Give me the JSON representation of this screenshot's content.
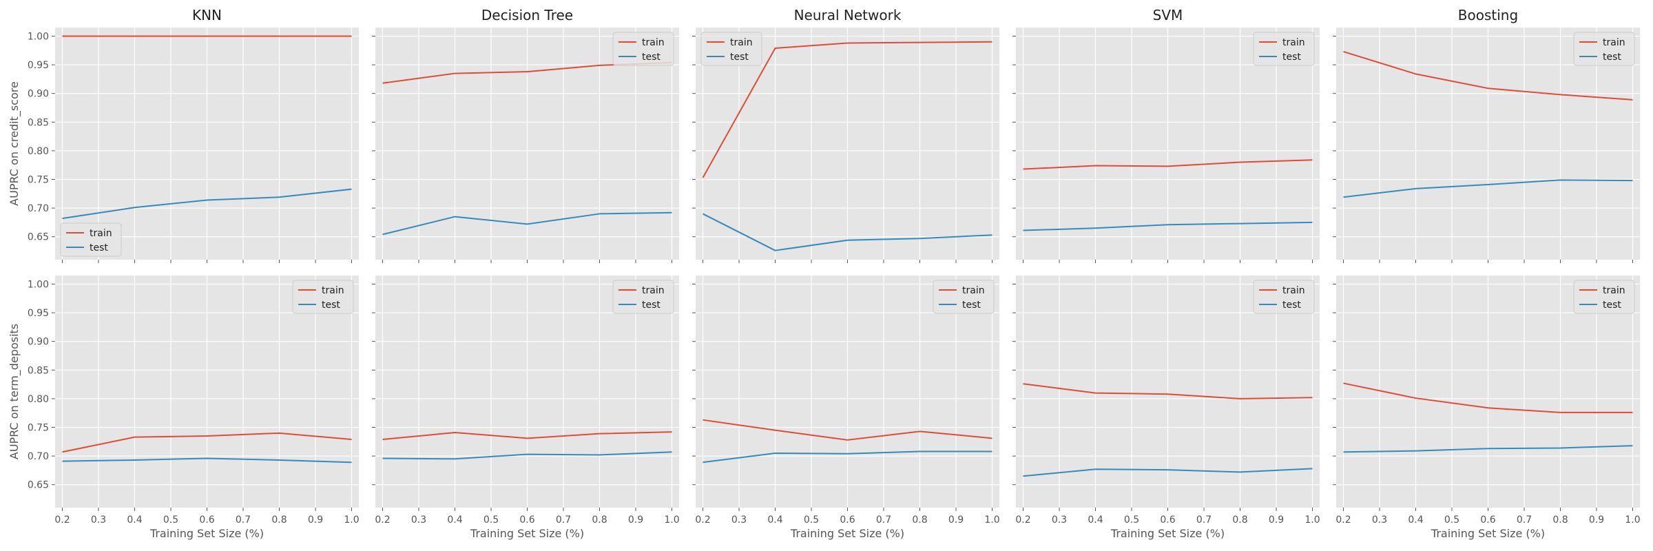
{
  "chart_data": {
    "type": "line",
    "layout": "grid 2 rows x 5 columns, shared x and y axes",
    "style": "ggplot",
    "grid": true,
    "colors": {
      "train": "#E24A33",
      "test": "#348ABD",
      "panel_bg": "#E5E5E5",
      "grid": "#FFFFFF"
    },
    "x": [
      0.2,
      0.4,
      0.6,
      0.8,
      1.0
    ],
    "xlim": [
      0.18,
      1.02
    ],
    "ylim": [
      0.61,
      1.015
    ],
    "xticks": [
      "0.2",
      "0.3",
      "0.4",
      "0.5",
      "0.6",
      "0.7",
      "0.8",
      "0.9",
      "1.0"
    ],
    "yticks": [
      "0.65",
      "0.70",
      "0.75",
      "0.80",
      "0.85",
      "0.90",
      "0.95",
      "1.00"
    ],
    "xlabel": "Training Set Size (%)",
    "row_ylabels": [
      "AUPRC on credit_score",
      "AUPRC on term_deposits"
    ],
    "column_titles": [
      "KNN",
      "Decision Tree",
      "Neural Network",
      "SVM",
      "Boosting"
    ],
    "legend_labels": [
      "train",
      "test"
    ],
    "panels": [
      {
        "row": 0,
        "col": 0,
        "legend_position": "lower-left",
        "series": [
          {
            "name": "train",
            "values": [
              1.0,
              1.0,
              1.0,
              1.0,
              1.0
            ]
          },
          {
            "name": "test",
            "values": [
              0.682,
              0.701,
              0.714,
              0.719,
              0.733
            ]
          }
        ]
      },
      {
        "row": 0,
        "col": 1,
        "legend_position": "upper-right",
        "series": [
          {
            "name": "train",
            "values": [
              0.918,
              0.935,
              0.938,
              0.949,
              0.954
            ]
          },
          {
            "name": "test",
            "values": [
              0.654,
              0.685,
              0.672,
              0.69,
              0.692
            ]
          }
        ]
      },
      {
        "row": 0,
        "col": 2,
        "legend_position": "upper-left",
        "series": [
          {
            "name": "train",
            "values": [
              0.753,
              0.979,
              0.988,
              0.989,
              0.99
            ]
          },
          {
            "name": "test",
            "values": [
              0.69,
              0.626,
              0.644,
              0.647,
              0.653
            ]
          }
        ]
      },
      {
        "row": 0,
        "col": 3,
        "legend_position": "upper-right",
        "series": [
          {
            "name": "train",
            "values": [
              0.768,
              0.774,
              0.773,
              0.78,
              0.784
            ]
          },
          {
            "name": "test",
            "values": [
              0.661,
              0.665,
              0.671,
              0.673,
              0.675
            ]
          }
        ]
      },
      {
        "row": 0,
        "col": 4,
        "legend_position": "upper-right",
        "series": [
          {
            "name": "train",
            "values": [
              0.973,
              0.934,
              0.909,
              0.898,
              0.889
            ]
          },
          {
            "name": "test",
            "values": [
              0.719,
              0.734,
              0.741,
              0.749,
              0.748
            ]
          }
        ]
      },
      {
        "row": 1,
        "col": 0,
        "legend_position": "upper-right",
        "series": [
          {
            "name": "train",
            "values": [
              0.707,
              0.733,
              0.735,
              0.74,
              0.729
            ]
          },
          {
            "name": "test",
            "values": [
              0.691,
              0.693,
              0.696,
              0.693,
              0.689
            ]
          }
        ]
      },
      {
        "row": 1,
        "col": 1,
        "legend_position": "upper-right",
        "series": [
          {
            "name": "train",
            "values": [
              0.729,
              0.741,
              0.731,
              0.739,
              0.742
            ]
          },
          {
            "name": "test",
            "values": [
              0.696,
              0.695,
              0.703,
              0.702,
              0.707
            ]
          }
        ]
      },
      {
        "row": 1,
        "col": 2,
        "legend_position": "upper-right",
        "series": [
          {
            "name": "train",
            "values": [
              0.763,
              0.745,
              0.728,
              0.743,
              0.731
            ]
          },
          {
            "name": "test",
            "values": [
              0.689,
              0.705,
              0.704,
              0.708,
              0.708
            ]
          }
        ]
      },
      {
        "row": 1,
        "col": 3,
        "legend_position": "upper-right",
        "series": [
          {
            "name": "train",
            "values": [
              0.826,
              0.81,
              0.808,
              0.8,
              0.802
            ]
          },
          {
            "name": "test",
            "values": [
              0.665,
              0.677,
              0.676,
              0.672,
              0.678
            ]
          }
        ]
      },
      {
        "row": 1,
        "col": 4,
        "legend_position": "upper-right",
        "series": [
          {
            "name": "train",
            "values": [
              0.827,
              0.801,
              0.784,
              0.776,
              0.776
            ]
          },
          {
            "name": "test",
            "values": [
              0.707,
              0.709,
              0.713,
              0.714,
              0.718
            ]
          }
        ]
      }
    ]
  }
}
